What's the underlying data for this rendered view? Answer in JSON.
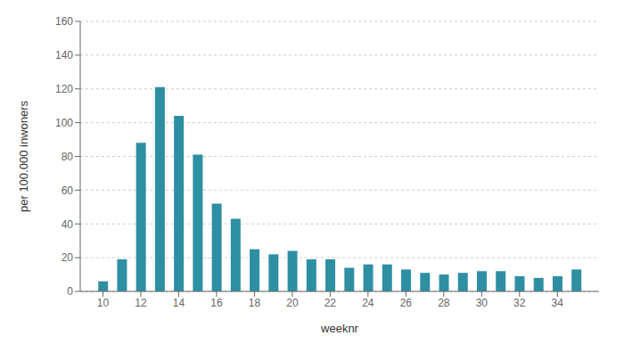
{
  "chart_data": {
    "type": "bar",
    "xlabel": "weeknr",
    "ylabel": "per 100.000 inwoners",
    "x": [
      10,
      11,
      12,
      13,
      14,
      15,
      16,
      17,
      18,
      19,
      20,
      21,
      22,
      23,
      24,
      25,
      26,
      27,
      28,
      29,
      30,
      31,
      32,
      33,
      34,
      35
    ],
    "values": [
      6,
      19,
      88,
      121,
      104,
      81,
      52,
      43,
      25,
      22,
      24,
      19,
      19,
      14,
      16,
      16,
      13,
      11,
      10,
      11,
      12,
      12,
      9,
      8,
      9,
      13
    ],
    "color": "#2e8fa3",
    "xlim": [
      8.8,
      36.2
    ],
    "ylim": [
      0,
      160
    ],
    "xticks": [
      10,
      12,
      14,
      16,
      18,
      20,
      22,
      24,
      26,
      28,
      30,
      32,
      34
    ],
    "yticks": [
      0,
      20,
      40,
      60,
      80,
      100,
      120,
      140,
      160
    ],
    "grid": true
  }
}
